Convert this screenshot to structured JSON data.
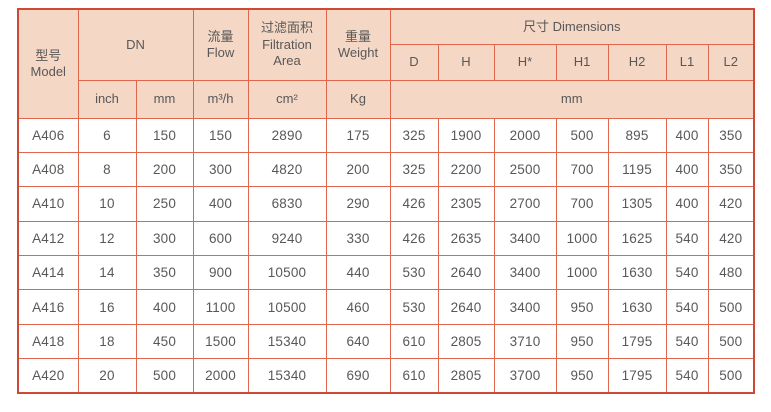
{
  "colors": {
    "header_fill": "#f4d7c5",
    "border_inner": "#e0664c",
    "border_outer": "#cf4a36",
    "text": "#585858",
    "row_fill": "#ffffff"
  },
  "table": {
    "header": {
      "model_zh": "型号",
      "model_en": "Model",
      "dn": "DN",
      "flow_zh": "流量",
      "flow_en": "Flow",
      "filtration_zh": "过滤面积",
      "filtration_en": "Filtration Area",
      "weight_zh": "重量",
      "weight_en": "Weight",
      "dimensions": "尺寸 Dimensions",
      "dimension_cols": [
        "D",
        "H",
        "H*",
        "H1",
        "H2",
        "L1",
        "L2"
      ],
      "units": {
        "inch": "inch",
        "mm": "mm",
        "flow": "m³/h",
        "area": "cm²",
        "weight": "Kg",
        "dims": "mm"
      }
    },
    "columns_order": [
      "model",
      "dn_inch",
      "dn_mm",
      "flow_m3h",
      "filtration_area_cm2",
      "weight_kg",
      "D",
      "H",
      "H_star",
      "H1",
      "H2",
      "L1",
      "L2"
    ],
    "rows": [
      {
        "cells": [
          "A406",
          "6",
          "150",
          "150",
          "2890",
          "175",
          "325",
          "1900",
          "2000",
          "500",
          "895",
          "400",
          "350"
        ]
      },
      {
        "cells": [
          "A408",
          "8",
          "200",
          "300",
          "4820",
          "200",
          "325",
          "2200",
          "2500",
          "700",
          "1195",
          "400",
          "350"
        ]
      },
      {
        "cells": [
          "A410",
          "10",
          "250",
          "400",
          "6830",
          "290",
          "426",
          "2305",
          "2700",
          "700",
          "1305",
          "400",
          "420"
        ]
      },
      {
        "cells": [
          "A412",
          "12",
          "300",
          "600",
          "9240",
          "330",
          "426",
          "2635",
          "3400",
          "1000",
          "1625",
          "540",
          "420"
        ]
      },
      {
        "cells": [
          "A414",
          "14",
          "350",
          "900",
          "10500",
          "440",
          "530",
          "2640",
          "3400",
          "1000",
          "1630",
          "540",
          "480"
        ]
      },
      {
        "cells": [
          "A416",
          "16",
          "400",
          "1100",
          "10500",
          "460",
          "530",
          "2640",
          "3400",
          "950",
          "1630",
          "540",
          "500"
        ]
      },
      {
        "cells": [
          "A418",
          "18",
          "450",
          "1500",
          "15340",
          "640",
          "610",
          "2805",
          "3710",
          "950",
          "1795",
          "540",
          "500"
        ]
      },
      {
        "cells": [
          "A420",
          "20",
          "500",
          "2000",
          "15340",
          "690",
          "610",
          "2805",
          "3700",
          "950",
          "1795",
          "540",
          "500"
        ]
      }
    ]
  }
}
